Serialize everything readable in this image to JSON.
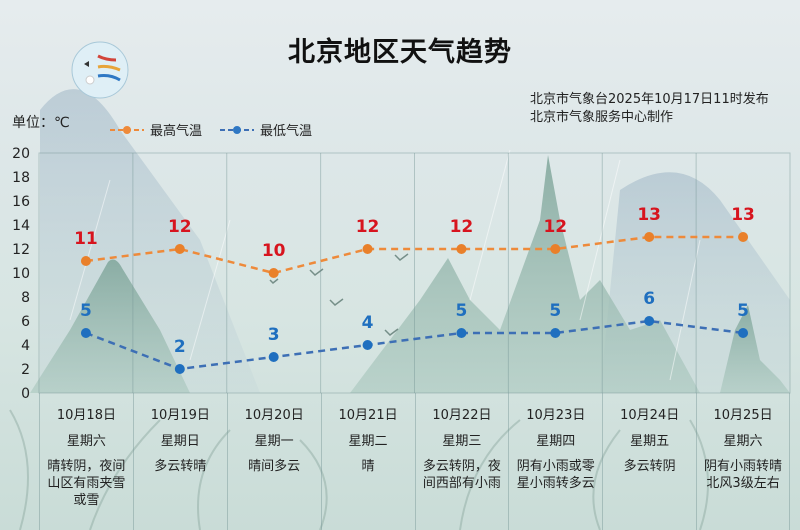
{
  "header": {
    "title": "北京地区天气趋势",
    "source_line1": "北京市气象台2025年10月17日11时发布",
    "source_line2": "北京市气象服务中心制作",
    "logo": "beijing-meteorological-service-logo"
  },
  "unit_label": "单位：℃",
  "legend": {
    "high": "最高气温",
    "low": "最低气温"
  },
  "colors": {
    "high_line": "#ee8a3a",
    "high_label": "#d7141e",
    "low_line": "#3d6fb5",
    "low_label": "#1f6fbf"
  },
  "days": [
    {
      "date": "10月18日",
      "weekday": "星期六",
      "desc": "晴转阴，夜间山区有雨夹雪或雪"
    },
    {
      "date": "10月19日",
      "weekday": "星期日",
      "desc": "多云转晴"
    },
    {
      "date": "10月20日",
      "weekday": "星期一",
      "desc": "晴间多云"
    },
    {
      "date": "10月21日",
      "weekday": "星期二",
      "desc": "晴"
    },
    {
      "date": "10月22日",
      "weekday": "星期三",
      "desc": "多云转阴，夜间西部有小雨"
    },
    {
      "date": "10月23日",
      "weekday": "星期四",
      "desc": "阴有小雨或零星小雨转多云"
    },
    {
      "date": "10月24日",
      "weekday": "星期五",
      "desc": "多云转阴"
    },
    {
      "date": "10月25日",
      "weekday": "星期六",
      "desc": "阴有小雨转晴北风3级左右"
    }
  ],
  "chart_data": {
    "type": "line",
    "title": "北京地区天气趋势",
    "xlabel": "",
    "ylabel": "单位：℃",
    "categories": [
      "10月18日",
      "10月19日",
      "10月20日",
      "10月21日",
      "10月22日",
      "10月23日",
      "10月24日",
      "10月25日"
    ],
    "series": [
      {
        "name": "最高气温",
        "values": [
          11,
          12,
          10,
          12,
          12,
          12,
          13,
          13
        ],
        "color": "#ee8a3a",
        "style": "dashed",
        "marker": "circle"
      },
      {
        "name": "最低气温",
        "values": [
          5,
          2,
          3,
          4,
          5,
          5,
          6,
          5
        ],
        "color": "#3d6fb5",
        "style": "dashed",
        "marker": "circle"
      }
    ],
    "ylim": [
      0,
      20
    ],
    "yticks": [
      0,
      2,
      4,
      6,
      8,
      10,
      12,
      14,
      16,
      18,
      20
    ],
    "grid": "vertical column separators",
    "legend_position": "top-left",
    "data_labels": true
  }
}
